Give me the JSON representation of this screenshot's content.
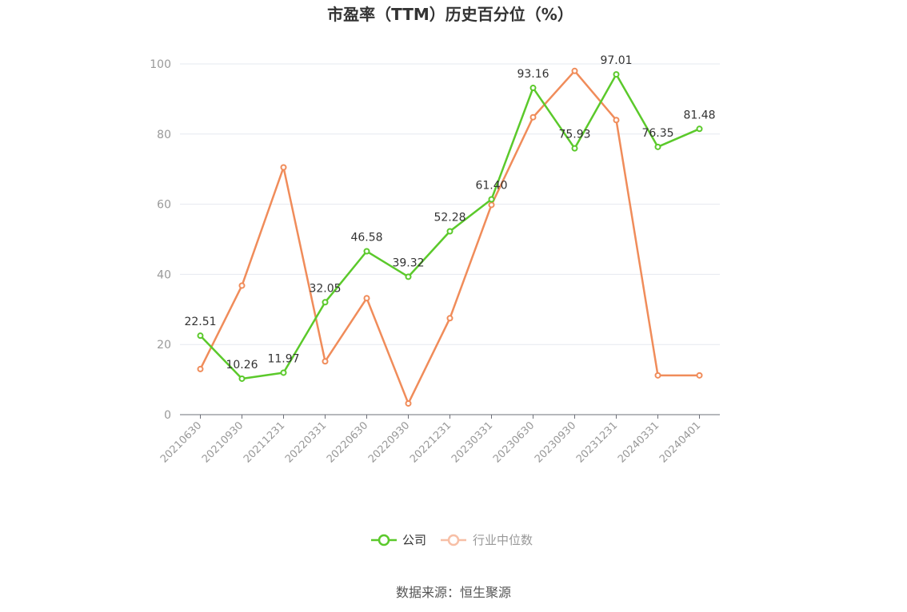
{
  "chart_data": {
    "type": "line",
    "title": "市盈率（TTM）历史百分位（%）",
    "categories": [
      "20210630",
      "20210930",
      "20211231",
      "20220331",
      "20220630",
      "20220930",
      "20221231",
      "20230331",
      "20230630",
      "20230930",
      "20231231",
      "20240331",
      "20240401"
    ],
    "series": [
      {
        "name": "公司",
        "color": "#5bc92b",
        "values": [
          22.51,
          10.26,
          11.97,
          32.05,
          46.58,
          39.32,
          52.28,
          61.4,
          93.16,
          75.93,
          97.01,
          76.35,
          81.48
        ],
        "labels": [
          "22.51",
          "10.26",
          "11.97",
          "32.05",
          "46.58",
          "39.32",
          "52.28",
          "61.40",
          "93.16",
          "75.93",
          "97.01",
          "76.35",
          "81.48"
        ]
      },
      {
        "name": "行业中位数",
        "color": "#f08c5a",
        "values": [
          13.0,
          36.8,
          70.5,
          15.2,
          33.2,
          3.2,
          27.5,
          59.8,
          84.8,
          98.0,
          84.0,
          11.2,
          11.2
        ]
      }
    ],
    "ylim": [
      0,
      100
    ],
    "yticks": [
      "0",
      "20",
      "40",
      "60",
      "80",
      "100"
    ],
    "grid": true,
    "legend_position": "bottom-center",
    "source": "数据来源：恒生聚源",
    "legend_inactive_color": "#f7bfa6",
    "legend_inactive_text_color": "#999999"
  }
}
